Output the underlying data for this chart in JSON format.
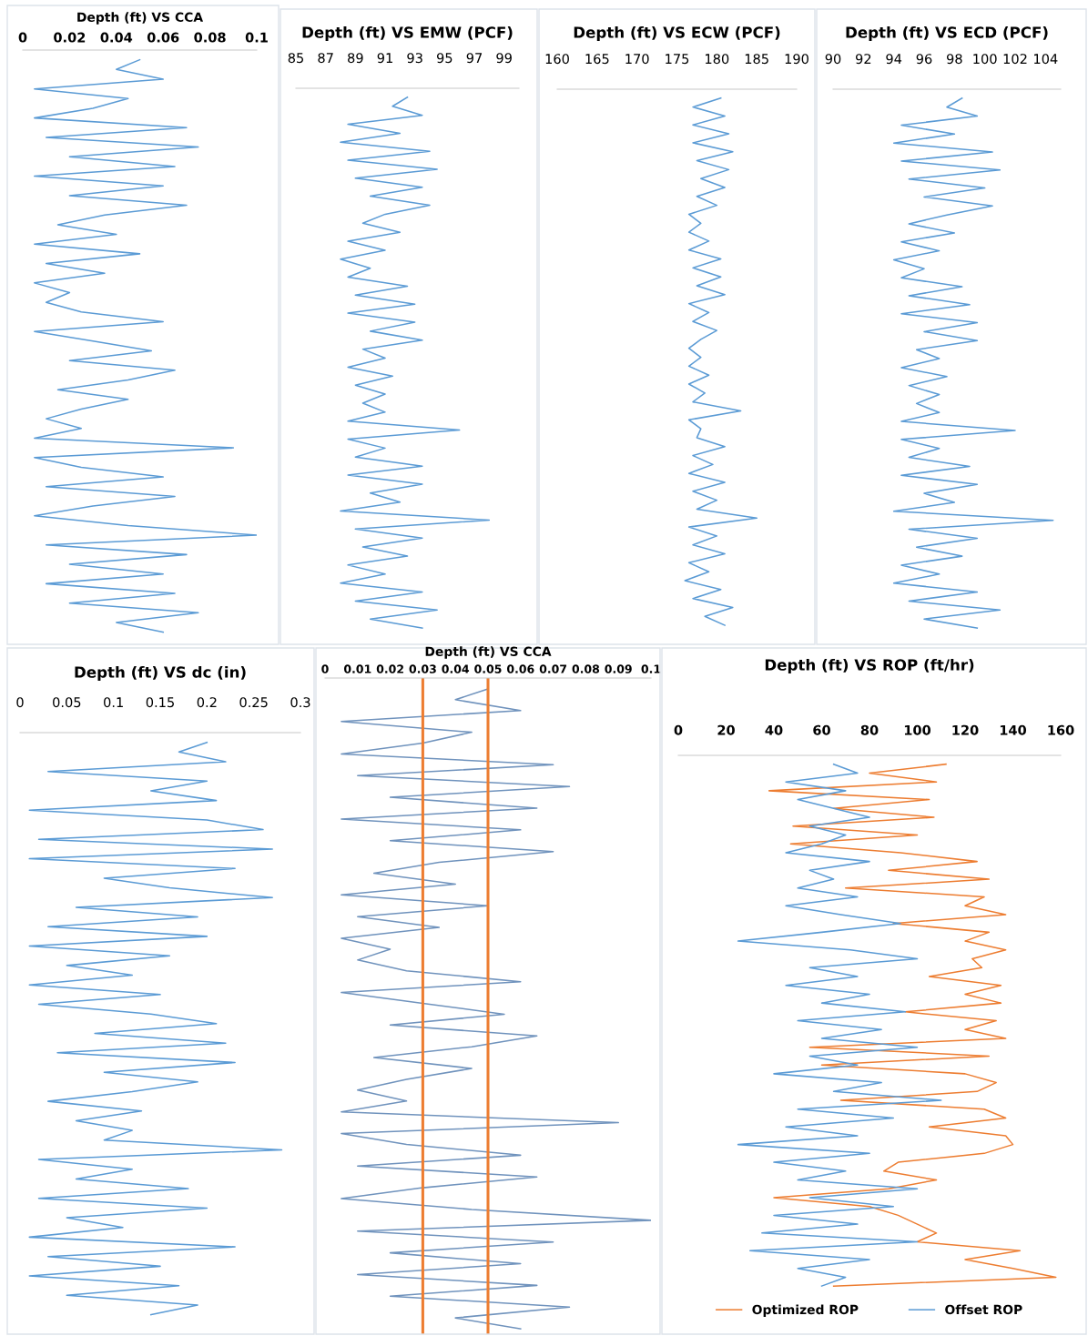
{
  "chart_data": [
    {
      "type": "line",
      "title": "Depth (ft) VS CCA",
      "orientation": "horizontal",
      "tick_labels": "x",
      "xlim": [
        0,
        0.1
      ],
      "xticks": [
        0,
        0.02,
        0.04,
        0.06,
        0.08,
        0.1
      ],
      "categories": [
        null,
        null,
        null,
        null,
        null,
        null,
        null,
        null,
        null,
        null,
        null,
        null,
        null,
        null,
        null,
        null,
        null,
        null,
        null,
        null,
        null,
        null,
        null,
        null,
        null,
        null,
        null,
        null,
        null,
        null,
        null,
        null,
        null,
        null,
        null,
        null,
        null,
        null,
        null,
        null,
        null,
        null,
        null,
        null,
        null,
        null,
        null,
        null,
        null,
        null,
        null,
        null,
        null,
        null,
        null,
        null,
        null,
        null,
        null,
        null
      ],
      "series": [
        {
          "color": "#5b9bd5",
          "values": [
            0.05,
            0.04,
            0.06,
            0.005,
            0.045,
            0.03,
            0.005,
            0.07,
            0.01,
            0.075,
            0.02,
            0.065,
            0.005,
            0.06,
            0.02,
            0.07,
            0.035,
            0.015,
            0.04,
            0.005,
            0.05,
            0.01,
            0.035,
            0.005,
            0.02,
            0.01,
            0.025,
            0.06,
            0.005,
            0.03,
            0.055,
            0.02,
            0.065,
            0.045,
            0.015,
            0.045,
            0.025,
            0.01,
            0.025,
            0.005,
            0.09,
            0.005,
            0.025,
            0.06,
            0.01,
            0.065,
            0.03,
            0.005,
            0.045,
            0.1,
            0.01,
            0.07,
            0.02,
            0.06,
            0.01,
            0.065,
            0.02,
            0.075,
            0.04,
            0.06
          ]
        }
      ]
    },
    {
      "type": "line",
      "title": "Depth (ft) VS EMW (PCF)",
      "orientation": "horizontal",
      "tick_labels": "x",
      "xlim": [
        85,
        100
      ],
      "xticks": [
        85,
        87,
        89,
        91,
        93,
        95,
        97,
        99
      ],
      "categories": [
        null,
        null,
        null,
        null,
        null,
        null,
        null,
        null,
        null,
        null,
        null,
        null,
        null,
        null,
        null,
        null,
        null,
        null,
        null,
        null,
        null,
        null,
        null,
        null,
        null,
        null,
        null,
        null,
        null,
        null,
        null,
        null,
        null,
        null,
        null,
        null,
        null,
        null,
        null,
        null,
        null,
        null,
        null,
        null,
        null,
        null,
        null,
        null,
        null,
        null,
        null,
        null,
        null,
        null,
        null,
        null,
        null,
        null,
        null,
        null
      ],
      "series": [
        {
          "color": "#5b9bd5",
          "values": [
            92.5,
            91.5,
            93.5,
            88.5,
            92,
            88,
            94,
            88.5,
            94.5,
            89,
            93.5,
            90,
            94,
            91,
            89.5,
            92,
            88.5,
            91,
            88,
            90,
            88.5,
            92.5,
            89,
            93,
            88.5,
            93,
            90,
            93.5,
            89.5,
            91,
            88.5,
            91.5,
            89,
            91,
            89.5,
            91,
            88.5,
            96,
            88.5,
            91,
            89,
            93.5,
            88.5,
            93.5,
            90,
            92,
            88,
            98,
            89,
            93.5,
            89.5,
            92.5,
            88.5,
            91,
            88,
            93.5,
            89,
            94.5,
            90,
            93.5
          ]
        }
      ]
    },
    {
      "type": "line",
      "title": "Depth (ft) VS ECW (PCF)",
      "orientation": "horizontal",
      "tick_labels": "x",
      "xlim": [
        160,
        190
      ],
      "xticks": [
        160,
        165,
        170,
        175,
        180,
        185,
        190
      ],
      "categories": [
        null,
        null,
        null,
        null,
        null,
        null,
        null,
        null,
        null,
        null,
        null,
        null,
        null,
        null,
        null,
        null,
        null,
        null,
        null,
        null,
        null,
        null,
        null,
        null,
        null,
        null,
        null,
        null,
        null,
        null,
        null,
        null,
        null,
        null,
        null,
        null,
        null,
        null,
        null,
        null,
        null,
        null,
        null,
        null,
        null,
        null,
        null,
        null,
        null,
        null,
        null,
        null,
        null,
        null,
        null,
        null,
        null,
        null,
        null,
        null
      ],
      "series": [
        {
          "color": "#5b9bd5",
          "values": [
            180.5,
            177,
            181,
            177,
            181.5,
            177,
            182,
            177.5,
            181.5,
            178,
            181,
            177.5,
            180,
            176.5,
            178,
            176.5,
            179,
            176.5,
            180.5,
            177,
            180.5,
            177.5,
            181,
            176.5,
            179,
            177,
            180,
            178,
            176.5,
            178,
            176.5,
            179,
            176.5,
            178.5,
            177,
            183,
            176.5,
            178,
            177.5,
            181,
            177,
            179.5,
            176.5,
            181,
            177,
            180,
            177.5,
            185,
            176.5,
            180,
            177,
            181,
            176.5,
            179,
            176,
            180.5,
            177,
            182,
            178.5,
            181
          ]
        }
      ]
    },
    {
      "type": "line",
      "title": "Depth (ft) VS ECD (PCF)",
      "orientation": "horizontal",
      "tick_labels": "x",
      "xlim": [
        90,
        105
      ],
      "xticks": [
        90,
        92,
        94,
        96,
        98,
        100,
        102,
        104
      ],
      "categories": [
        null,
        null,
        null,
        null,
        null,
        null,
        null,
        null,
        null,
        null,
        null,
        null,
        null,
        null,
        null,
        null,
        null,
        null,
        null,
        null,
        null,
        null,
        null,
        null,
        null,
        null,
        null,
        null,
        null,
        null,
        null,
        null,
        null,
        null,
        null,
        null,
        null,
        null,
        null,
        null,
        null,
        null,
        null,
        null,
        null,
        null,
        null,
        null,
        null,
        null,
        null,
        null,
        null,
        null,
        null,
        null,
        null,
        null,
        null,
        null
      ],
      "series": [
        {
          "color": "#5b9bd5",
          "values": [
            98.5,
            97.5,
            99.5,
            94.5,
            98,
            94,
            100.5,
            94.5,
            101,
            95,
            100,
            96,
            100.5,
            97.5,
            95,
            98,
            94.5,
            97,
            94,
            96,
            94.5,
            98.5,
            95,
            99,
            94.5,
            99.5,
            96,
            99.5,
            95.5,
            97,
            94.5,
            97.5,
            95,
            97,
            95.5,
            97,
            94.5,
            102,
            94.5,
            97,
            95,
            99,
            94.5,
            99.5,
            96,
            98,
            94,
            104.5,
            95,
            99.5,
            95.5,
            98.5,
            94.5,
            97,
            94,
            99.5,
            95,
            101,
            96,
            99.5
          ]
        }
      ]
    },
    {
      "type": "line",
      "title": "Depth (ft) VS dc (in)",
      "orientation": "horizontal",
      "tick_labels": "x",
      "xlim": [
        0,
        0.3
      ],
      "xticks": [
        0,
        0.05,
        0.1,
        0.15,
        0.2,
        0.25,
        0.3
      ],
      "categories": [
        null,
        null,
        null,
        null,
        null,
        null,
        null,
        null,
        null,
        null,
        null,
        null,
        null,
        null,
        null,
        null,
        null,
        null,
        null,
        null,
        null,
        null,
        null,
        null,
        null,
        null,
        null,
        null,
        null,
        null,
        null,
        null,
        null,
        null,
        null,
        null,
        null,
        null,
        null,
        null,
        null,
        null,
        null,
        null,
        null,
        null,
        null,
        null,
        null,
        null,
        null,
        null,
        null,
        null,
        null,
        null,
        null,
        null,
        null,
        null
      ],
      "series": [
        {
          "color": "#5b9bd5",
          "values": [
            0.2,
            0.17,
            0.22,
            0.03,
            0.2,
            0.14,
            0.21,
            0.01,
            0.2,
            0.26,
            0.02,
            0.27,
            0.01,
            0.23,
            0.09,
            0.16,
            0.27,
            0.06,
            0.19,
            0.03,
            0.2,
            0.01,
            0.16,
            0.05,
            0.12,
            0.01,
            0.15,
            0.02,
            0.14,
            0.21,
            0.08,
            0.22,
            0.04,
            0.23,
            0.09,
            0.19,
            0.12,
            0.03,
            0.13,
            0.06,
            0.12,
            0.09,
            0.28,
            0.02,
            0.12,
            0.06,
            0.18,
            0.02,
            0.2,
            0.05,
            0.11,
            0.01,
            0.23,
            0.03,
            0.15,
            0.01,
            0.17,
            0.05,
            0.19,
            0.14
          ]
        }
      ]
    },
    {
      "type": "line",
      "title": "Depth (ft) VS CCA",
      "orientation": "horizontal",
      "tick_labels": "x",
      "xlim": [
        0,
        0.1
      ],
      "xticks": [
        0,
        0.01,
        0.02,
        0.03,
        0.04,
        0.05,
        0.06,
        0.07,
        0.08,
        0.09,
        0.1
      ],
      "ref_lines": [
        {
          "axis": "x",
          "value": 0.03,
          "color": "#ed7d31"
        },
        {
          "axis": "x",
          "value": 0.05,
          "color": "#ed7d31"
        }
      ],
      "categories": [
        null,
        null,
        null,
        null,
        null,
        null,
        null,
        null,
        null,
        null,
        null,
        null,
        null,
        null,
        null,
        null,
        null,
        null,
        null,
        null,
        null,
        null,
        null,
        null,
        null,
        null,
        null,
        null,
        null,
        null,
        null,
        null,
        null,
        null,
        null,
        null,
        null,
        null,
        null,
        null,
        null,
        null,
        null,
        null,
        null,
        null,
        null,
        null,
        null,
        null,
        null,
        null,
        null,
        null,
        null,
        null,
        null,
        null,
        null,
        null
      ],
      "series": [
        {
          "color": "#7093bd",
          "values": [
            0.05,
            0.04,
            0.06,
            0.005,
            0.045,
            0.03,
            0.005,
            0.07,
            0.01,
            0.075,
            0.02,
            0.065,
            0.005,
            0.06,
            0.02,
            0.07,
            0.035,
            0.015,
            0.04,
            0.005,
            0.05,
            0.01,
            0.035,
            0.005,
            0.02,
            0.01,
            0.025,
            0.06,
            0.005,
            0.03,
            0.055,
            0.02,
            0.065,
            0.045,
            0.015,
            0.045,
            0.025,
            0.01,
            0.025,
            0.005,
            0.09,
            0.005,
            0.025,
            0.06,
            0.01,
            0.065,
            0.03,
            0.005,
            0.045,
            0.1,
            0.01,
            0.07,
            0.02,
            0.06,
            0.01,
            0.065,
            0.02,
            0.075,
            0.04,
            0.06
          ]
        }
      ]
    },
    {
      "type": "line",
      "title": "Depth (ft) VS ROP (ft/hr)",
      "orientation": "horizontal",
      "tick_labels": "x",
      "xlim": [
        0,
        160
      ],
      "xticks": [
        0,
        20,
        40,
        60,
        80,
        100,
        120,
        140,
        160
      ],
      "legend": "bottom",
      "categories": [
        null,
        null,
        null,
        null,
        null,
        null,
        null,
        null,
        null,
        null,
        null,
        null,
        null,
        null,
        null,
        null,
        null,
        null,
        null,
        null,
        null,
        null,
        null,
        null,
        null,
        null,
        null,
        null,
        null,
        null,
        null,
        null,
        null,
        null,
        null,
        null,
        null,
        null,
        null,
        null,
        null,
        null,
        null,
        null,
        null,
        null,
        null,
        null,
        null,
        null,
        null,
        null,
        null,
        null,
        null,
        null,
        null,
        null,
        null,
        null
      ],
      "series": [
        {
          "name": "Optimized ROP",
          "color": "#ed7d31",
          "values": [
            112,
            80,
            108,
            38,
            105,
            65,
            107,
            48,
            100,
            47,
            93,
            125,
            88,
            130,
            70,
            128,
            120,
            137,
            90,
            130,
            120,
            137,
            123,
            127,
            105,
            135,
            120,
            135,
            95,
            133,
            120,
            137,
            55,
            130,
            60,
            120,
            133,
            125,
            68,
            128,
            137,
            105,
            137,
            140,
            128,
            92,
            86,
            108,
            88,
            40,
            80,
            92,
            100,
            108,
            100,
            143,
            120,
            140,
            158,
            65
          ]
        },
        {
          "name": "Offset ROP",
          "color": "#5b9bd5",
          "values": [
            65,
            75,
            45,
            70,
            50,
            65,
            80,
            55,
            70,
            60,
            45,
            80,
            55,
            65,
            50,
            75,
            45,
            68,
            93,
            60,
            25,
            72,
            100,
            55,
            75,
            45,
            80,
            60,
            95,
            50,
            85,
            60,
            100,
            55,
            75,
            40,
            85,
            65,
            110,
            50,
            90,
            45,
            75,
            25,
            80,
            40,
            70,
            50,
            100,
            55,
            90,
            40,
            75,
            35,
            100,
            30,
            80,
            50,
            70,
            60
          ]
        }
      ]
    }
  ]
}
